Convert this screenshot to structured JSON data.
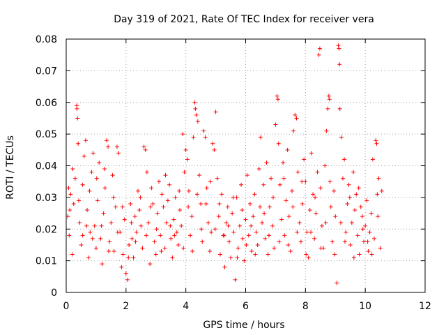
{
  "chart_data": {
    "type": "scatter",
    "title": "Day 319 of 2021, Rate Of TEC Index for receiver vera",
    "xlabel": "GPS time / hours",
    "ylabel": "ROTI / TECUs",
    "xlim": [
      0,
      12
    ],
    "ylim": [
      0,
      0.08
    ],
    "xticks": [
      0,
      2,
      4,
      6,
      8,
      10,
      12
    ],
    "xtick_labels": [
      "0",
      "2",
      "4",
      "6",
      "8",
      "10",
      "12"
    ],
    "yticks": [
      0,
      0.01,
      0.02,
      0.03,
      0.04,
      0.05,
      0.06,
      0.07,
      0.08
    ],
    "ytick_labels": [
      "0",
      "0.01",
      "0.02",
      "0.03",
      "0.04",
      "0.05",
      "0.06",
      "0.07",
      "0.08"
    ],
    "grid": true,
    "marker": "+",
    "marker_color": "#ff0000",
    "series": [
      {
        "name": "ROTI",
        "color": "#ff0000",
        "points": [
          [
            0.05,
            0.024
          ],
          [
            0.1,
            0.018
          ],
          [
            0.15,
            0.031
          ],
          [
            0.2,
            0.012
          ],
          [
            0.25,
            0.028
          ],
          [
            0.3,
            0.036
          ],
          [
            0.35,
            0.059
          ],
          [
            0.36,
            0.058
          ],
          [
            0.38,
            0.055
          ],
          [
            0.4,
            0.047
          ],
          [
            0.45,
            0.022
          ],
          [
            0.5,
            0.015
          ],
          [
            0.55,
            0.034
          ],
          [
            0.6,
            0.043
          ],
          [
            0.65,
            0.048
          ],
          [
            0.7,
            0.026
          ],
          [
            0.75,
            0.011
          ],
          [
            0.8,
            0.019
          ],
          [
            0.85,
            0.038
          ],
          [
            0.9,
            0.044
          ],
          [
            0.95,
            0.021
          ],
          [
            1.0,
            0.014
          ],
          [
            1.05,
            0.029
          ],
          [
            1.1,
            0.041
          ],
          [
            1.15,
            0.017
          ],
          [
            1.2,
            0.009
          ],
          [
            1.25,
            0.025
          ],
          [
            1.3,
            0.033
          ],
          [
            1.35,
            0.048
          ],
          [
            1.4,
            0.046
          ],
          [
            1.45,
            0.016
          ],
          [
            1.5,
            0.022
          ],
          [
            1.55,
            0.037
          ],
          [
            1.6,
            0.013
          ],
          [
            1.65,
            0.027
          ],
          [
            1.7,
            0.046
          ],
          [
            1.75,
            0.044
          ],
          [
            1.8,
            0.019
          ],
          [
            1.85,
            0.008
          ],
          [
            1.9,
            0.012
          ],
          [
            1.95,
            0.023
          ],
          [
            2.0,
            0.006
          ],
          [
            2.05,
            0.004
          ],
          [
            2.1,
            0.015
          ],
          [
            2.15,
            0.028
          ],
          [
            2.2,
            0.017
          ],
          [
            2.25,
            0.011
          ],
          [
            2.3,
            0.024
          ],
          [
            2.35,
            0.019
          ],
          [
            2.4,
            0.032
          ],
          [
            2.45,
            0.026
          ],
          [
            2.5,
            0.021
          ],
          [
            2.55,
            0.014
          ],
          [
            2.6,
            0.046
          ],
          [
            2.65,
            0.045
          ],
          [
            2.7,
            0.038
          ],
          [
            2.75,
            0.022
          ],
          [
            2.8,
            0.009
          ],
          [
            2.85,
            0.033
          ],
          [
            2.9,
            0.028
          ],
          [
            2.95,
            0.016
          ],
          [
            3.0,
            0.012
          ],
          [
            3.05,
            0.025
          ],
          [
            3.1,
            0.035
          ],
          [
            3.15,
            0.018
          ],
          [
            3.2,
            0.031
          ],
          [
            3.25,
            0.027
          ],
          [
            3.3,
            0.014
          ],
          [
            3.35,
            0.022
          ],
          [
            3.4,
            0.029
          ],
          [
            3.45,
            0.034
          ],
          [
            3.5,
            0.017
          ],
          [
            3.55,
            0.011
          ],
          [
            3.6,
            0.023
          ],
          [
            3.65,
            0.03
          ],
          [
            3.7,
            0.019
          ],
          [
            3.75,
            0.015
          ],
          [
            3.8,
            0.026
          ],
          [
            3.85,
            0.021
          ],
          [
            3.9,
            0.05
          ],
          [
            3.95,
            0.038
          ],
          [
            4.0,
            0.045
          ],
          [
            4.05,
            0.042
          ],
          [
            4.1,
            0.032
          ],
          [
            4.15,
            0.018
          ],
          [
            4.2,
            0.024
          ],
          [
            4.25,
            0.049
          ],
          [
            4.3,
            0.06
          ],
          [
            4.32,
            0.058
          ],
          [
            4.35,
            0.056
          ],
          [
            4.4,
            0.054
          ],
          [
            4.45,
            0.037
          ],
          [
            4.5,
            0.028
          ],
          [
            4.55,
            0.016
          ],
          [
            4.6,
            0.051
          ],
          [
            4.65,
            0.049
          ],
          [
            4.7,
            0.033
          ],
          [
            4.75,
            0.022
          ],
          [
            4.8,
            0.013
          ],
          [
            4.85,
            0.019
          ],
          [
            4.9,
            0.047
          ],
          [
            4.95,
            0.045
          ],
          [
            5.0,
            0.057
          ],
          [
            5.05,
            0.036
          ],
          [
            5.1,
            0.024
          ],
          [
            5.15,
            0.012
          ],
          [
            5.2,
            0.031
          ],
          [
            5.25,
            0.018
          ],
          [
            5.3,
            0.008
          ],
          [
            5.35,
            0.022
          ],
          [
            5.4,
            0.027
          ],
          [
            5.45,
            0.016
          ],
          [
            5.5,
            0.011
          ],
          [
            5.55,
            0.025
          ],
          [
            5.6,
            0.019
          ],
          [
            5.65,
            0.004
          ],
          [
            5.7,
            0.03
          ],
          [
            5.75,
            0.014
          ],
          [
            5.8,
            0.021
          ],
          [
            5.85,
            0.034
          ],
          [
            5.9,
            0.017
          ],
          [
            5.95,
            0.01
          ],
          [
            6.0,
            0.023
          ],
          [
            6.05,
            0.037
          ],
          [
            6.1,
            0.018
          ],
          [
            6.15,
            0.028
          ],
          [
            6.2,
            0.013
          ],
          [
            6.25,
            0.024
          ],
          [
            6.3,
            0.031
          ],
          [
            6.35,
            0.019
          ],
          [
            6.4,
            0.015
          ],
          [
            6.45,
            0.039
          ],
          [
            6.5,
            0.049
          ],
          [
            6.55,
            0.022
          ],
          [
            6.6,
            0.034
          ],
          [
            6.65,
            0.017
          ],
          [
            6.7,
            0.041
          ],
          [
            6.75,
            0.012
          ],
          [
            6.8,
            0.027
          ],
          [
            6.85,
            0.036
          ],
          [
            6.9,
            0.021
          ],
          [
            6.95,
            0.014
          ],
          [
            7.0,
            0.053
          ],
          [
            7.05,
            0.062
          ],
          [
            7.08,
            0.061
          ],
          [
            7.1,
            0.047
          ],
          [
            7.15,
            0.034
          ],
          [
            7.2,
            0.023
          ],
          [
            7.25,
            0.041
          ],
          [
            7.3,
            0.018
          ],
          [
            7.35,
            0.029
          ],
          [
            7.4,
            0.045
          ],
          [
            7.45,
            0.024
          ],
          [
            7.5,
            0.013
          ],
          [
            7.55,
            0.032
          ],
          [
            7.6,
            0.051
          ],
          [
            7.65,
            0.056
          ],
          [
            7.7,
            0.055
          ],
          [
            7.75,
            0.038
          ],
          [
            7.8,
            0.022
          ],
          [
            7.85,
            0.016
          ],
          [
            7.9,
            0.028
          ],
          [
            7.95,
            0.042
          ],
          [
            8.0,
            0.035
          ],
          [
            8.05,
            0.019
          ],
          [
            8.1,
            0.011
          ],
          [
            8.15,
            0.026
          ],
          [
            8.2,
            0.044
          ],
          [
            8.25,
            0.031
          ],
          [
            8.3,
            0.017
          ],
          [
            8.35,
            0.025
          ],
          [
            8.4,
            0.038
          ],
          [
            8.45,
            0.075
          ],
          [
            8.48,
            0.077
          ],
          [
            8.5,
            0.033
          ],
          [
            8.55,
            0.021
          ],
          [
            8.6,
            0.014
          ],
          [
            8.65,
            0.04
          ],
          [
            8.7,
            0.051
          ],
          [
            8.75,
            0.058
          ],
          [
            8.78,
            0.062
          ],
          [
            8.8,
            0.061
          ],
          [
            8.85,
            0.027
          ],
          [
            8.9,
            0.016
          ],
          [
            8.95,
            0.032
          ],
          [
            9.0,
            0.024
          ],
          [
            9.05,
            0.003
          ],
          [
            9.1,
            0.078
          ],
          [
            9.12,
            0.077
          ],
          [
            9.14,
            0.072
          ],
          [
            9.15,
            0.058
          ],
          [
            9.2,
            0.049
          ],
          [
            9.25,
            0.036
          ],
          [
            9.3,
            0.042
          ],
          [
            9.35,
            0.019
          ],
          [
            9.4,
            0.028
          ],
          [
            9.45,
            0.034
          ],
          [
            9.5,
            0.015
          ],
          [
            9.55,
            0.022
          ],
          [
            9.6,
            0.038
          ],
          [
            9.65,
            0.026
          ],
          [
            9.7,
            0.031
          ],
          [
            9.75,
            0.018
          ],
          [
            9.8,
            0.012
          ],
          [
            9.85,
            0.027
          ],
          [
            9.9,
            0.024
          ],
          [
            9.95,
            0.016
          ],
          [
            10.0,
            0.021
          ],
          [
            10.05,
            0.029
          ],
          [
            10.1,
            0.013
          ],
          [
            10.15,
            0.019
          ],
          [
            10.2,
            0.025
          ],
          [
            10.25,
            0.042
          ],
          [
            10.3,
            0.017
          ],
          [
            10.35,
            0.048
          ],
          [
            10.38,
            0.047
          ],
          [
            10.4,
            0.031
          ],
          [
            10.45,
            0.036
          ],
          [
            10.5,
            0.014
          ],
          [
            10.55,
            0.032
          ],
          [
            0.08,
            0.033
          ],
          [
            0.12,
            0.026
          ],
          [
            0.22,
            0.039
          ],
          [
            0.42,
            0.029
          ],
          [
            0.55,
            0.018
          ],
          [
            0.68,
            0.021
          ],
          [
            0.78,
            0.032
          ],
          [
            0.88,
            0.017
          ],
          [
            1.02,
            0.036
          ],
          [
            1.18,
            0.021
          ],
          [
            1.28,
            0.039
          ],
          [
            1.42,
            0.013
          ],
          [
            1.58,
            0.03
          ],
          [
            1.72,
            0.019
          ],
          [
            1.88,
            0.027
          ],
          [
            2.08,
            0.011
          ],
          [
            2.18,
            0.022
          ],
          [
            2.32,
            0.016
          ],
          [
            2.48,
            0.03
          ],
          [
            2.68,
            0.018
          ],
          [
            2.82,
            0.027
          ],
          [
            3.02,
            0.02
          ],
          [
            3.18,
            0.013
          ],
          [
            3.32,
            0.037
          ],
          [
            3.48,
            0.021
          ],
          [
            3.62,
            0.018
          ],
          [
            3.78,
            0.032
          ],
          [
            3.92,
            0.014
          ],
          [
            4.08,
            0.027
          ],
          [
            4.22,
            0.013
          ],
          [
            4.38,
            0.031
          ],
          [
            4.52,
            0.02
          ],
          [
            4.68,
            0.028
          ],
          [
            4.82,
            0.035
          ],
          [
            4.98,
            0.02
          ],
          [
            5.12,
            0.028
          ],
          [
            5.28,
            0.018
          ],
          [
            5.42,
            0.021
          ],
          [
            5.58,
            0.03
          ],
          [
            5.72,
            0.011
          ],
          [
            5.88,
            0.026
          ],
          [
            6.02,
            0.015
          ],
          [
            6.18,
            0.021
          ],
          [
            6.32,
            0.012
          ],
          [
            6.48,
            0.027
          ],
          [
            6.62,
            0.025
          ],
          [
            6.78,
            0.018
          ],
          [
            6.92,
            0.03
          ],
          [
            7.12,
            0.016
          ],
          [
            7.28,
            0.036
          ],
          [
            7.42,
            0.015
          ],
          [
            7.58,
            0.027
          ],
          [
            7.72,
            0.019
          ],
          [
            7.88,
            0.035
          ],
          [
            8.02,
            0.012
          ],
          [
            8.18,
            0.019
          ],
          [
            8.32,
            0.03
          ],
          [
            8.52,
            0.014
          ],
          [
            8.68,
            0.022
          ],
          [
            8.82,
            0.035
          ],
          [
            8.98,
            0.012
          ],
          [
            9.18,
            0.022
          ],
          [
            9.32,
            0.016
          ],
          [
            9.48,
            0.03
          ],
          [
            9.62,
            0.011
          ],
          [
            9.78,
            0.033
          ],
          [
            9.92,
            0.02
          ],
          [
            10.08,
            0.016
          ],
          [
            10.22,
            0.012
          ],
          [
            10.42,
            0.024
          ]
        ]
      }
    ]
  }
}
